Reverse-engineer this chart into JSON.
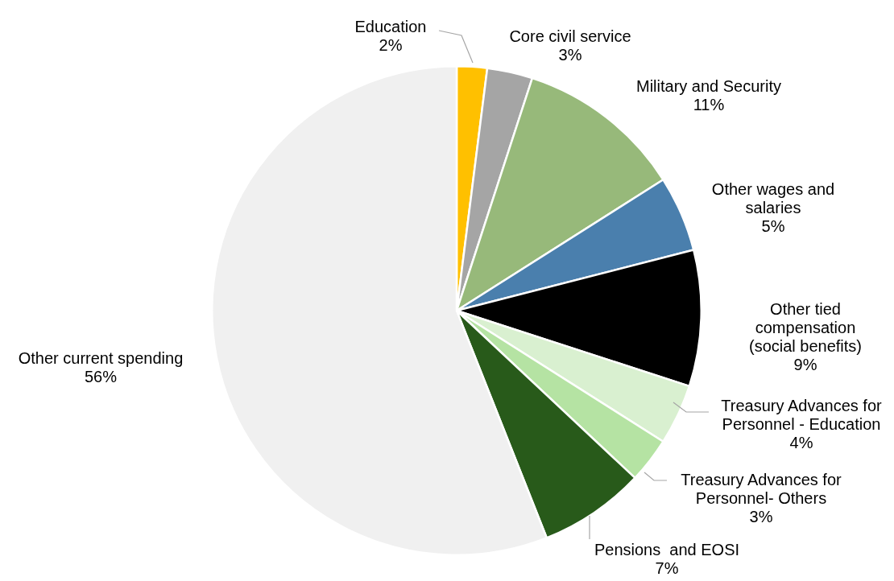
{
  "chart_data": {
    "type": "pie",
    "categories": [
      "Education",
      "Core civil service",
      "Military and Security",
      "Other wages and salaries",
      "Other tied compensation (social benefits)",
      "Treasury Advances for Personnel - Education",
      "Treasury Advances for Personnel- Others",
      "Pensions  and EOSI",
      "Other current spending"
    ],
    "values": [
      2,
      3,
      11,
      5,
      9,
      4,
      3,
      7,
      56
    ],
    "value_labels": [
      "2%",
      "3%",
      "11%",
      "5%",
      "9%",
      "4%",
      "3%",
      "7%",
      "56%"
    ],
    "colors": [
      "#ffc000",
      "#a5a5a5",
      "#97b97a",
      "#4a7fad",
      "#000000",
      "#d9f0d0",
      "#b5e3a3",
      "#285a1a",
      "#f0f0f0"
    ],
    "legend": false
  }
}
